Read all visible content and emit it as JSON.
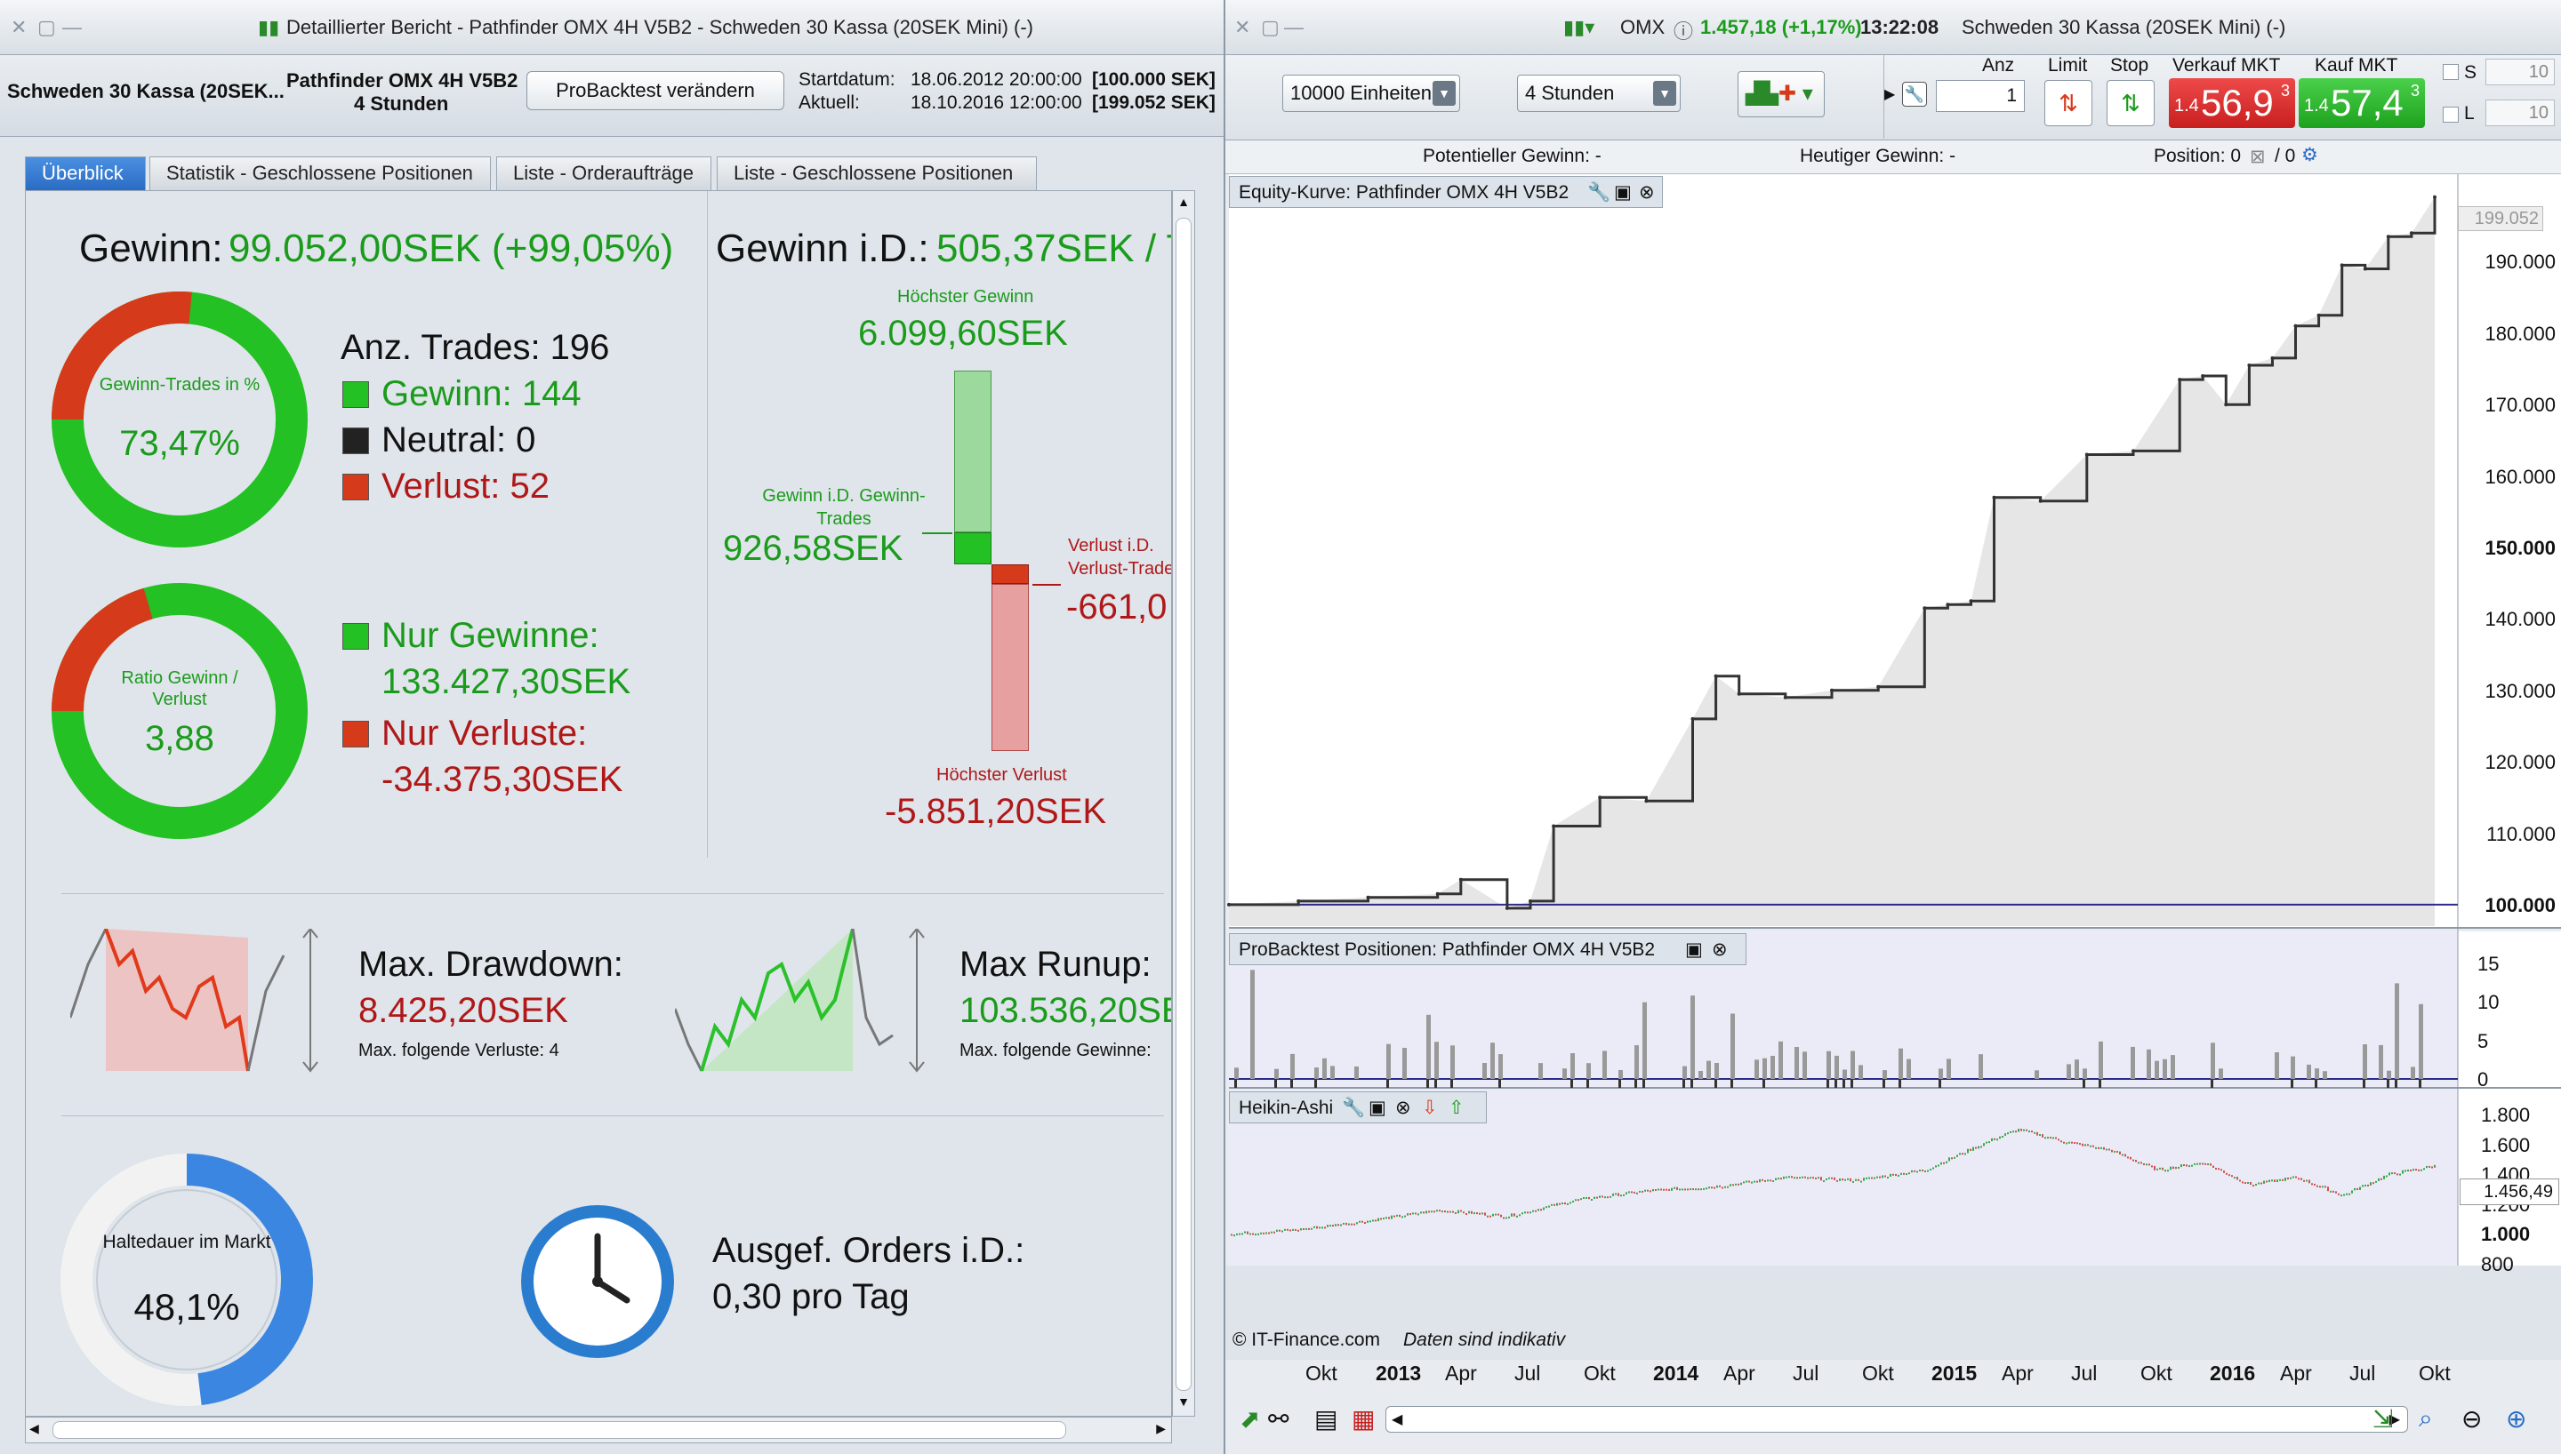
{
  "left_window": {
    "title": "Detaillierter Bericht - Pathfinder OMX 4H V5B2 - Schweden 30 Kassa (20SEK Mini) (-)",
    "instrument": "Schweden 30 Kassa (20SEK...",
    "strategy_name": "Pathfinder OMX 4H V5B2",
    "timeframe": "4 Stunden",
    "modify_button": "ProBacktest verändern",
    "start_label": "Startdatum:",
    "start_date": "18.06.2012 20:00:00",
    "start_capital": "[100.000 SEK]",
    "current_label": "Aktuell:",
    "current_date": "18.10.2016 12:00:00",
    "current_capital": "[199.052 SEK]",
    "tabs": [
      "Überblick",
      "Statistik - Geschlossene Positionen",
      "Liste - Orderaufträge",
      "Liste - Geschlossene Positionen"
    ],
    "gain_label": "Gewinn:",
    "gain_value": "99.052,00SEK (+99,05%)",
    "gain_avg_label": "Gewinn i.D.:",
    "gain_avg_value": "505,37SEK / T",
    "donut1_label": "Gewinn-Trades in %",
    "donut1_value": "73,47%",
    "trades_label": "Anz. Trades: 196",
    "win_label": "Gewinn: 144",
    "neutral_label": "Neutral: 0",
    "loss_label": "Verlust: 52",
    "donut2_label": "Ratio Gewinn / Verlust",
    "donut2_value": "3,88",
    "only_gains_label": "Nur Gewinne:",
    "only_gains_value": "133.427,30SEK",
    "only_losses_label": "Nur Verluste:",
    "only_losses_value": "-34.375,30SEK",
    "highest_gain_label": "Höchster Gewinn",
    "highest_gain_value": "6.099,60SEK",
    "avg_win_label": "Gewinn i.D. Gewinn-Trades",
    "avg_win_value": "926,58SEK",
    "avg_loss_label": "Verlust i.D. Verlust-Trades",
    "avg_loss_value": "-661,0",
    "highest_loss_label": "Höchster Verlust",
    "highest_loss_value": "-5.851,20SEK",
    "drawdown_label": "Max. Drawdown:",
    "drawdown_value": "8.425,20SEK",
    "drawdown_sub": "Max. folgende Verluste: 4",
    "runup_label": "Max Runup:",
    "runup_value": "103.536,20SE",
    "runup_sub": "Max. folgende Gewinne:",
    "hold_label": "Haltedauer im Markt",
    "hold_value": "48,1%",
    "hold_fraction": 0.481,
    "orders_label": "Ausgef. Orders i.D.:",
    "orders_value": "0,30 pro Tag"
  },
  "right_window": {
    "title_symbol": "OMX",
    "title_quote": "1.457,18 (+1,17%)",
    "title_time": "13:22:08",
    "title_instrument": "Schweden 30 Kassa (20SEK Mini) (-)",
    "units_select": "10000 Einheiten",
    "period_select": "4 Stunden",
    "anz_label": "Anz",
    "anz_value": "1",
    "limit_label": "Limit",
    "stop_label": "Stop",
    "sell_label": "Verkauf MKT",
    "sell_prefix": "1.4",
    "sell_big": "56,9",
    "sell_sup": "3",
    "buy_label": "Kauf MKT",
    "buy_prefix": "1.4",
    "buy_big": "57,4",
    "buy_sup": "3",
    "s_label": "S",
    "l_label": "L",
    "s_value": "10",
    "l_value": "10",
    "potential_label": "Potentieller Gewinn: -",
    "today_label": "Heutiger Gewinn: -",
    "position_label": "Position: 0",
    "position_sep": "/ 0",
    "panel_equity": "Equity-Kurve: Pathfinder OMX 4H V5B2",
    "panel_positions": "ProBacktest Positionen: Pathfinder OMX 4H V5B2",
    "panel_ha": "Heikin-Ashi",
    "equity_last": "199.052",
    "equity_yticks": [
      "190.000",
      "180.000",
      "170.000",
      "160.000",
      "150.000",
      "140.000",
      "130.000",
      "120.000",
      "110.000",
      "100.000"
    ],
    "pos_yticks": [
      "15",
      "10",
      "5",
      "0"
    ],
    "ha_yticks": [
      "1.800",
      "1.600",
      "1.400",
      "1.200",
      "1.000",
      "800"
    ],
    "ha_last": "1.456,49",
    "copyright": "© IT-Finance.com",
    "disclaimer": "Daten sind indikativ",
    "xticks": [
      {
        "t": "Okt",
        "b": false
      },
      {
        "t": "2013",
        "b": true
      },
      {
        "t": "Apr",
        "b": false
      },
      {
        "t": "Jul",
        "b": false
      },
      {
        "t": "Okt",
        "b": false
      },
      {
        "t": "2014",
        "b": true
      },
      {
        "t": "Apr",
        "b": false
      },
      {
        "t": "Jul",
        "b": false
      },
      {
        "t": "Okt",
        "b": false
      },
      {
        "t": "2015",
        "b": true
      },
      {
        "t": "Apr",
        "b": false
      },
      {
        "t": "Jul",
        "b": false
      },
      {
        "t": "Okt",
        "b": false
      },
      {
        "t": "2016",
        "b": true
      },
      {
        "t": "Apr",
        "b": false
      },
      {
        "t": "Jul",
        "b": false
      },
      {
        "t": "Okt",
        "b": false
      }
    ]
  },
  "chart_data": [
    {
      "type": "line",
      "title": "Equity-Kurve: Pathfinder OMX 4H V5B2",
      "x": [
        "2012-06",
        "2012-09",
        "2012-12",
        "2013-03",
        "2013-04",
        "2013-06",
        "2013-07",
        "2013-08",
        "2013-10",
        "2013-12",
        "2014-02",
        "2014-03",
        "2014-04",
        "2014-06",
        "2014-08",
        "2014-10",
        "2014-12",
        "2015-01",
        "2015-02",
        "2015-03",
        "2015-05",
        "2015-07",
        "2015-09",
        "2015-11",
        "2015-12",
        "2016-01",
        "2016-02",
        "2016-03",
        "2016-04",
        "2016-05",
        "2016-06",
        "2016-07",
        "2016-08",
        "2016-09",
        "2016-10"
      ],
      "series": [
        {
          "values": [
            100000,
            100500,
            101000,
            101500,
            103500,
            99500,
            100500,
            111000,
            115000,
            114500,
            126000,
            132000,
            129500,
            129000,
            130000,
            130500,
            141500,
            142000,
            142500,
            157000,
            156500,
            163000,
            163500,
            173500,
            174000,
            170000,
            175500,
            176500,
            181000,
            182500,
            189500,
            189000,
            193500,
            194000,
            199052
          ]
        }
      ],
      "ylim": [
        97000,
        201000
      ]
    },
    {
      "type": "bar",
      "title": "ProBacktest Positionen: Pathfinder OMX 4H V5B2",
      "ylim": [
        0,
        15
      ]
    },
    {
      "type": "line",
      "title": "Heikin-Ashi",
      "x": [
        "2012-06",
        "2012-09",
        "2012-12",
        "2013-03",
        "2013-06",
        "2013-09",
        "2013-12",
        "2014-03",
        "2014-06",
        "2014-09",
        "2014-12",
        "2015-03",
        "2015-04",
        "2015-06",
        "2015-08",
        "2015-10",
        "2015-12",
        "2016-02",
        "2016-04",
        "2016-06",
        "2016-08",
        "2016-10"
      ],
      "series": [
        {
          "values": [
            1000,
            1030,
            1090,
            1160,
            1120,
            1230,
            1290,
            1320,
            1380,
            1360,
            1430,
            1640,
            1700,
            1620,
            1560,
            1430,
            1480,
            1330,
            1380,
            1260,
            1400,
            1457
          ]
        }
      ],
      "ylim": [
        800,
        1800
      ]
    },
    {
      "type": "pie",
      "title": "Gewinn-Trades in %",
      "categories": [
        "Gewinn",
        "Verlust"
      ],
      "values": [
        73.47,
        26.53
      ]
    }
  ],
  "colors": {
    "gain": "#1b9b1b",
    "loss": "#b01818",
    "accent": "#2a6cc4"
  }
}
